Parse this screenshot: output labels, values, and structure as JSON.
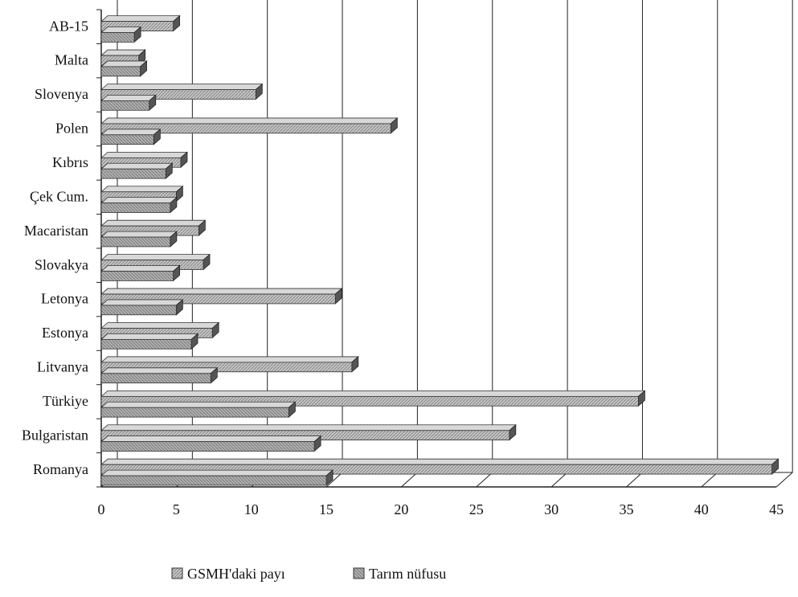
{
  "chart_data": {
    "type": "bar",
    "orientation": "horizontal",
    "categories": [
      "AB-15",
      "Malta",
      "Slovenya",
      "Polen",
      "Kıbrıs",
      "Çek Cum.",
      "Macaristan",
      "Slovakya",
      "Letonya",
      "Estonya",
      "Litvanya",
      "Türkiye",
      "Bulgaristan",
      "Romanya"
    ],
    "series": [
      {
        "name": "GSMH'daki payı",
        "values": [
          4.8,
          2.5,
          10.3,
          19.3,
          5.3,
          5.0,
          6.5,
          6.8,
          15.6,
          7.4,
          16.7,
          35.8,
          27.2,
          44.7
        ]
      },
      {
        "name": "Tarım nüfusu",
        "values": [
          2.2,
          2.6,
          3.2,
          3.5,
          4.3,
          4.6,
          4.6,
          4.8,
          5.0,
          6.0,
          7.3,
          12.5,
          14.2,
          15.0
        ]
      }
    ],
    "xlim": [
      0,
      45
    ],
    "xticks": [
      "0",
      "5",
      "10",
      "15",
      "20",
      "25",
      "30",
      "35",
      "40",
      "45"
    ],
    "grid": true,
    "legend": "bottom",
    "colors": {
      "series1": "#b5b5b5",
      "series2": "#a3a3a3",
      "grid": "#222222",
      "axis": "#222222"
    }
  }
}
